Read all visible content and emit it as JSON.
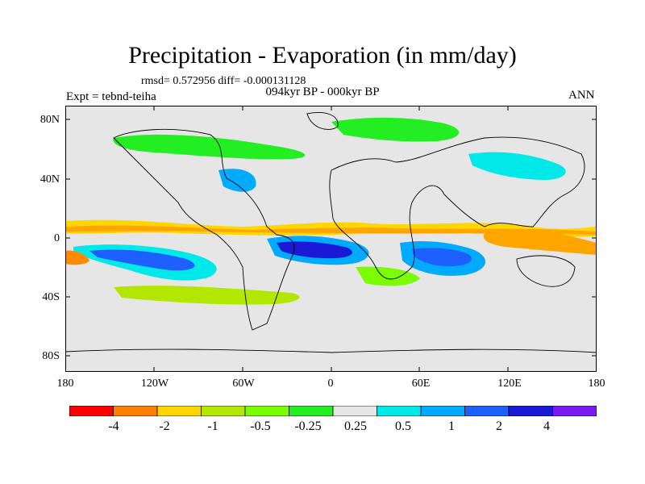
{
  "title": "Precipitation - Evaporation (in mm/day)",
  "stats": "rmsd= 0.572956 diff= -0.000131128",
  "subtitle": "094kyr BP - 000kyr BP",
  "expt": "Expt = tebnd-teiha",
  "season": "ANN",
  "y_labels": [
    "80N",
    "40N",
    "0",
    "40S",
    "80S"
  ],
  "x_labels": [
    "180",
    "120W",
    "60W",
    "0",
    "60E",
    "120E",
    "180"
  ],
  "colorbar": {
    "labels": [
      "-4",
      "-2",
      "-1",
      "-0.5",
      "-0.25",
      "0.25",
      "0.5",
      "1",
      "2",
      "4"
    ],
    "colors": [
      "#ff0000",
      "#ff7f00",
      "#ffd700",
      "#b3e600",
      "#7cfc00",
      "#22ee22",
      "#e6e6e6",
      "#00e8e8",
      "#00aaff",
      "#1e60ff",
      "#1a1ad6",
      "#7a1aee"
    ]
  },
  "palette": {
    "land_bg": "#e6e6e6",
    "coast": "#000000"
  }
}
